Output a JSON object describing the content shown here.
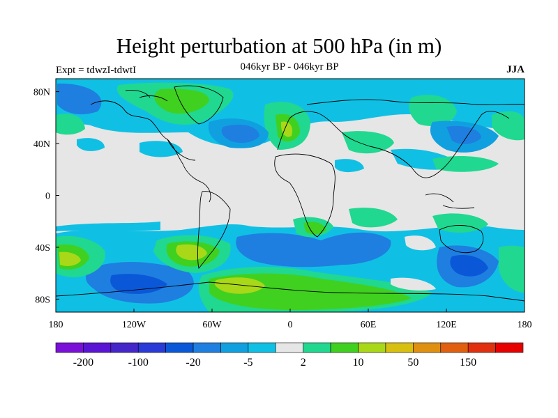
{
  "title": "Height perturbation at 500 hPa (in m)",
  "subtitle": "046kyr BP - 046kyr BP",
  "expt_label": "Expt = tdwzI-tdwtI",
  "season": "JJA",
  "chart_data": {
    "type": "heatmap",
    "variable": "500 hPa geopotential height perturbation",
    "units": "m",
    "x_ticks": [
      "180",
      "120W",
      "60W",
      "0",
      "60E",
      "120E",
      "180"
    ],
    "y_ticks": [
      "80N",
      "40N",
      "0",
      "40S",
      "80S"
    ],
    "xlim": [
      -180,
      180
    ],
    "ylim": [
      -90,
      90
    ],
    "colorbar_levels": [
      -200,
      -150,
      -100,
      -50,
      -20,
      -10,
      -5,
      -2,
      2,
      5,
      10,
      20,
      50,
      100,
      150,
      200
    ],
    "colorbar_labels": [
      "-200",
      "-100",
      "-20",
      "-5",
      "2",
      "10",
      "50",
      "150"
    ],
    "colors": [
      "#7a10d8",
      "#5a14d4",
      "#4426c9",
      "#2a3ad6",
      "#0a58d8",
      "#1e7fe0",
      "#10a0e0",
      "#10c0e4",
      "#e6e6e6",
      "#20d890",
      "#40d020",
      "#a8d818",
      "#d8c010",
      "#e09010",
      "#e06010",
      "#e03010",
      "#e60000"
    ]
  }
}
